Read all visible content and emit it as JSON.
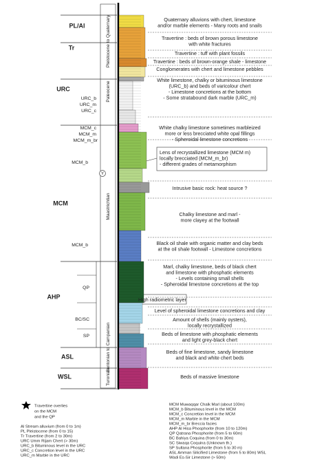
{
  "units": [
    {
      "label": "PL/Al"
    },
    {
      "label": "Tr"
    },
    {
      "label": "URC"
    },
    {
      "label": "MCM"
    },
    {
      "label": "AHP"
    },
    {
      "label": "ASL"
    },
    {
      "label": "WSL"
    }
  ],
  "subunits": [
    {
      "label": "URC_b"
    },
    {
      "label": "URC_m"
    },
    {
      "label": "URC_c"
    },
    {
      "label": "MCM_c"
    },
    {
      "label": "MCM_m"
    },
    {
      "label": "MCM_m_br"
    },
    {
      "label": "MCM_b"
    },
    {
      "label": "MCM_b"
    },
    {
      "label": "QP"
    },
    {
      "label": "BC/SC"
    },
    {
      "label": "SP"
    }
  ],
  "ages": [
    {
      "label": "Pleistocene to Quaternary"
    },
    {
      "label": "Paleocene"
    },
    {
      "label": "Maastrichtian"
    },
    {
      "label": "Santonian to Campanian"
    },
    {
      "label": "Turonian"
    }
  ],
  "marker": "Y",
  "descriptions": [
    {
      "lines": [
        "Quaternary alluvions with chert, limestone",
        "and/or marble elements - Many roots and snails"
      ]
    },
    {
      "lines": [
        "Travertine : beds of brown porous limestone",
        "with white fractures"
      ]
    },
    {
      "lines": [
        "Travertine : tuff with plant fossils"
      ]
    },
    {
      "lines": [
        "Travertine : beds of brown-orange shale - limestone"
      ]
    },
    {
      "lines": [
        "Conglomerates with chert and limestone pebbles"
      ]
    },
    {
      "lines": [
        "White limestone, chalky or bituminous limestone",
        "(URC_b) and beds of varicolour chert",
        "- Limestone concretions at the bottom",
        "- Some stratabound dark marble (URC_m)"
      ]
    },
    {
      "lines": [
        "White chalky limestone sometimes marbleized",
        "more or less brecciated white opal fillings",
        "- Spheroidal limestone concretions"
      ]
    },
    {
      "lines": [
        "Lens of recrystallized limestone (MCM m)",
        "locally brecciated (MCM_m_br)",
        "- different grades of metamorphism"
      ]
    },
    {
      "lines": [
        "Intrusive basic rock: heat source ?"
      ]
    },
    {
      "lines": [
        "Chalky limestone and marl -",
        "more clayey at the footwall"
      ]
    },
    {
      "lines": [
        "Black oil shale with organic matter and clay beds",
        "at the oil shale footwall - Limestone concretions"
      ]
    },
    {
      "lines": [
        "Marl, chalky limestone, beds of black chert",
        "and limestone with phosphatic elements",
        "- Levels containing small shells",
        "- Spheroidal limestone concretions at the top"
      ]
    },
    {
      "lines": [
        "High radiometric layer"
      ]
    },
    {
      "lines": [
        "Level of spheroidal limestone concretions and clay"
      ]
    },
    {
      "lines": [
        "Amount of shells (mainly oysters),",
        "locally recrystallized"
      ]
    },
    {
      "lines": [
        "Beds of limestone with phosphatic elements",
        "and light grey-black chert"
      ]
    },
    {
      "lines": [
        "Beds of fine limestone, sandy limestone",
        "and black and white chert beds"
      ]
    },
    {
      "lines": [
        "Beds of massive limestone"
      ]
    }
  ],
  "legend": {
    "star_note": [
      "Travertine overlies",
      "on the MCM",
      "and the QP"
    ],
    "left": [
      "Al Stream alluvium (from 0 to 1m)",
      "PL Pleistocene (from 0 to 15)",
      "Tr Travertine (from 2 to 30m)",
      "URC Umm Rijam Chert (> 30m)",
      "URC_b Bituminous level in the URC",
      "URC_c Concretion level in the URC",
      "URC_m Marble in the URC"
    ],
    "right": [
      "MCM Muwaqqar Chalk Marl (about 100m)",
      "MCM_b Bituminous level in the MCM",
      "MCM_c Concretion level in the MCM",
      "MCM_m Marble in the MCM",
      "MCM_m_br Breccia facies",
      "AHP Al Hisa Phosphorite (from 10 to 120m)",
      "QP Qatrana Phosphorite (from 5 to 60m)",
      "BC Bahiya Coquina (from 0 to 30m)",
      "SC Siwaqa Coquina (Unknown th.)",
      "SP Sultana Phosphorite (from 5 to 30 m)",
      "ASL Amman Silicified Limestone (from 5 to 80m) WSL",
      "Wadi Es-Sir Limestone (> 50m)"
    ]
  }
}
